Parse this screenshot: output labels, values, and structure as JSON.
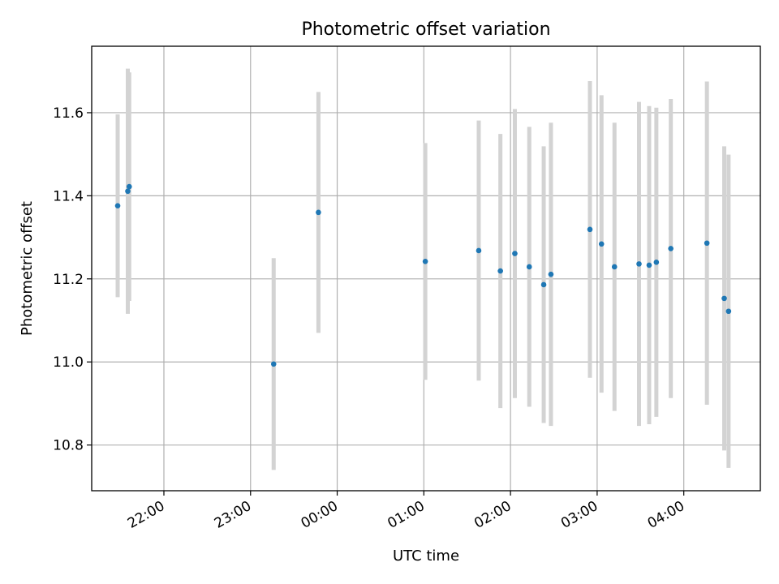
{
  "chart_data": {
    "type": "scatter",
    "title": "Photometric offset variation",
    "xlabel": "UTC time",
    "ylabel": "Photometric offset",
    "grid": true,
    "x_unit": "UTC time (HH:MM)",
    "x_ticks": [
      "22:00",
      "23:00",
      "00:00",
      "01:00",
      "02:00",
      "03:00",
      "04:00"
    ],
    "y_ticks": [
      "10.8",
      "11.0",
      "11.2",
      "11.4",
      "11.6"
    ],
    "xlim": [
      "21:10",
      "04:53"
    ],
    "ylim": [
      10.69,
      11.76
    ],
    "colors": {
      "points": "#1f77b4",
      "errorbars": "#d3d3d3",
      "grid": "#b0b0b0"
    },
    "points": [
      {
        "x": "21:28",
        "y": 11.376,
        "yerr": 0.22
      },
      {
        "x": "21:35",
        "y": 11.411,
        "yerr": 0.295
      },
      {
        "x": "21:36",
        "y": 11.422,
        "yerr": 0.275
      },
      {
        "x": "23:16",
        "y": 10.995,
        "yerr": 0.255
      },
      {
        "x": "23:47",
        "y": 11.36,
        "yerr": 0.29
      },
      {
        "x": "01:01",
        "y": 11.242,
        "yerr": 0.285
      },
      {
        "x": "01:38",
        "y": 11.268,
        "yerr": 0.313
      },
      {
        "x": "01:53",
        "y": 11.219,
        "yerr": 0.33
      },
      {
        "x": "02:03",
        "y": 11.261,
        "yerr": 0.348
      },
      {
        "x": "02:13",
        "y": 11.229,
        "yerr": 0.337
      },
      {
        "x": "02:23",
        "y": 11.186,
        "yerr": 0.333
      },
      {
        "x": "02:28",
        "y": 11.211,
        "yerr": 0.365
      },
      {
        "x": "02:55",
        "y": 11.319,
        "yerr": 0.357
      },
      {
        "x": "03:03",
        "y": 11.284,
        "yerr": 0.358
      },
      {
        "x": "03:12",
        "y": 11.229,
        "yerr": 0.347
      },
      {
        "x": "03:29",
        "y": 11.236,
        "yerr": 0.39
      },
      {
        "x": "03:36",
        "y": 11.233,
        "yerr": 0.383
      },
      {
        "x": "03:41",
        "y": 11.24,
        "yerr": 0.372
      },
      {
        "x": "03:51",
        "y": 11.273,
        "yerr": 0.36
      },
      {
        "x": "04:16",
        "y": 11.286,
        "yerr": 0.389
      },
      {
        "x": "04:28",
        "y": 11.153,
        "yerr": 0.366
      },
      {
        "x": "04:31",
        "y": 11.122,
        "yerr": 0.377
      }
    ]
  }
}
